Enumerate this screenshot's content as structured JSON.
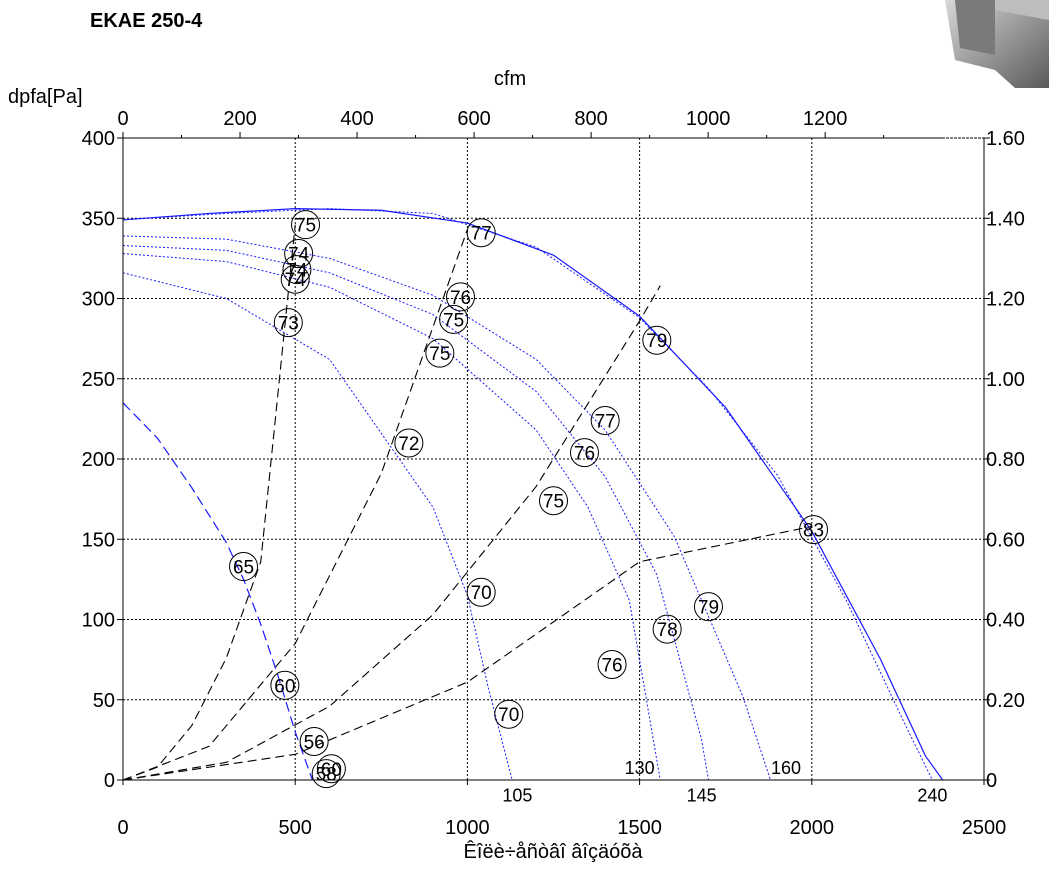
{
  "chart_data": {
    "type": "line",
    "title": "EKAE 250-4",
    "xlabel": "Êîëè÷åñòâî âîçäóõà",
    "ylabel": "dpfa[Pa]",
    "x2label": "cfm",
    "xlim": [
      0,
      2500
    ],
    "ylim": [
      0,
      400
    ],
    "x_ticks": [
      "0",
      "500",
      "1000",
      "1500",
      "2000",
      "2500"
    ],
    "y_ticks": [
      "0",
      "50",
      "100",
      "150",
      "200",
      "250",
      "300",
      "350",
      "400"
    ],
    "x2_ticks": [
      "0",
      "200",
      "400",
      "600",
      "800",
      "1000",
      "1200"
    ],
    "y2_ticks": [
      "0",
      "0.20",
      "0.40",
      "0.60",
      "0.80",
      "1.00",
      "1.20",
      "1.40",
      "1.60"
    ],
    "fan_curves": [
      {
        "x": [
          0,
          250,
          500,
          750,
          1000,
          1250,
          1500,
          1750,
          2000,
          2200,
          2330,
          2380
        ],
        "y": [
          349,
          353,
          356,
          355,
          347,
          327,
          289,
          232,
          155,
          75,
          15,
          0
        ]
      },
      {
        "x": [
          0,
          300,
          600,
          900,
          1200,
          1500,
          1700,
          1900,
          2100,
          2270,
          2350
        ],
        "y": [
          349,
          353,
          356,
          353,
          332,
          288,
          244,
          190,
          112,
          35,
          0
        ]
      },
      {
        "x": [
          0,
          300,
          600,
          900,
          1200,
          1400,
          1600,
          1800,
          1880
        ],
        "y": [
          339,
          337,
          325,
          302,
          262,
          218,
          152,
          52,
          0
        ]
      },
      {
        "x": [
          0,
          300,
          600,
          900,
          1200,
          1400,
          1550,
          1680,
          1700
        ],
        "y": [
          333,
          330,
          316,
          290,
          242,
          189,
          128,
          25,
          0
        ]
      },
      {
        "x": [
          0,
          300,
          600,
          900,
          1200,
          1350,
          1470,
          1560
        ],
        "y": [
          328,
          323,
          307,
          275,
          218,
          170,
          112,
          0
        ]
      },
      {
        "x": [
          0,
          300,
          600,
          900,
          1000,
          1060,
          1130
        ],
        "y": [
          316,
          300,
          262,
          170,
          115,
          58,
          0
        ]
      }
    ],
    "system_curves": [
      {
        "x": [
          0,
          100,
          200,
          300,
          400,
          500
        ],
        "y": [
          0,
          8,
          34,
          76,
          136,
          346
        ]
      },
      {
        "x": [
          0,
          250,
          500,
          750,
          1000
        ],
        "y": [
          0,
          21,
          85,
          191,
          343
        ]
      },
      {
        "x": [
          0,
          300,
          600,
          900,
          1200,
          1500,
          1560
        ],
        "y": [
          0,
          11,
          46,
          103,
          183,
          286,
          308
        ]
      },
      {
        "x": [
          0,
          500,
          1000,
          1500,
          2000
        ],
        "y": [
          0,
          16,
          61,
          136,
          158
        ]
      }
    ],
    "min_curve": {
      "x": [
        0,
        100,
        200,
        300,
        350,
        400,
        450,
        500,
        550
      ],
      "y": [
        235,
        213,
        182,
        148,
        125,
        97,
        65,
        30,
        0
      ]
    },
    "labels": [
      {
        "text": "75",
        "x": 530,
        "y": 346
      },
      {
        "text": "77",
        "x": 1040,
        "y": 341
      },
      {
        "text": "74",
        "x": 510,
        "y": 328
      },
      {
        "text": "74",
        "x": 505,
        "y": 318
      },
      {
        "text": "74",
        "x": 500,
        "y": 312
      },
      {
        "text": "76",
        "x": 980,
        "y": 301
      },
      {
        "text": "73",
        "x": 480,
        "y": 285
      },
      {
        "text": "75",
        "x": 960,
        "y": 287
      },
      {
        "text": "79",
        "x": 1550,
        "y": 274
      },
      {
        "text": "75",
        "x": 920,
        "y": 266
      },
      {
        "text": "77",
        "x": 1400,
        "y": 224
      },
      {
        "text": "72",
        "x": 830,
        "y": 210
      },
      {
        "text": "76",
        "x": 1340,
        "y": 204
      },
      {
        "text": "75",
        "x": 1250,
        "y": 174
      },
      {
        "text": "83",
        "x": 2005,
        "y": 156
      },
      {
        "text": "65",
        "x": 350,
        "y": 133
      },
      {
        "text": "70",
        "x": 1040,
        "y": 117
      },
      {
        "text": "79",
        "x": 1700,
        "y": 108
      },
      {
        "text": "78",
        "x": 1580,
        "y": 94
      },
      {
        "text": "76",
        "x": 1420,
        "y": 72
      },
      {
        "text": "60",
        "x": 470,
        "y": 59
      },
      {
        "text": "70",
        "x": 1120,
        "y": 41
      },
      {
        "text": "56",
        "x": 555,
        "y": 24
      },
      {
        "text": "60",
        "x": 605,
        "y": 7
      },
      {
        "text": "58",
        "x": 590,
        "y": 4
      }
    ],
    "rpm_labels": [
      {
        "text": "105",
        "x": 1145,
        "y": -9
      },
      {
        "text": "130",
        "x": 1500,
        "y": 8
      },
      {
        "text": "145",
        "x": 1680,
        "y": -9
      },
      {
        "text": "160",
        "x": 1925,
        "y": 8
      },
      {
        "text": "240",
        "x": 2350,
        "y": -9
      }
    ],
    "grid": true
  }
}
